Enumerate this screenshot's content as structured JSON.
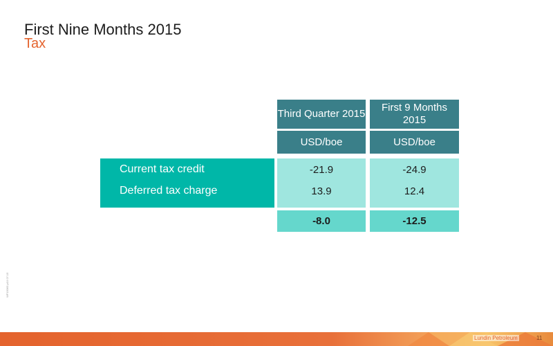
{
  "slide": {
    "title": "First Nine Months 2015",
    "subtitle": "Tax",
    "side_code": "WF15063 p10 07.15"
  },
  "table": {
    "columns": [
      {
        "header": "Third Quarter 2015",
        "unit": "USD/boe"
      },
      {
        "header": "First 9 Months 2015",
        "unit": "USD/boe"
      }
    ],
    "rows": [
      {
        "label": "Current tax credit",
        "values": [
          "-21.9",
          "-24.9"
        ]
      },
      {
        "label": "Deferred tax charge",
        "values": [
          "13.9",
          "12.4"
        ]
      }
    ],
    "totals": [
      "-8.0",
      "-12.5"
    ]
  },
  "footer": {
    "company": "Lundin Petroleum",
    "page": "11"
  },
  "colors": {
    "header": "#3a7f89",
    "label_block": "#00b7a8",
    "values_block": "#9fe6df",
    "totals_block": "#65d7cc",
    "accent": "#e4632d"
  }
}
